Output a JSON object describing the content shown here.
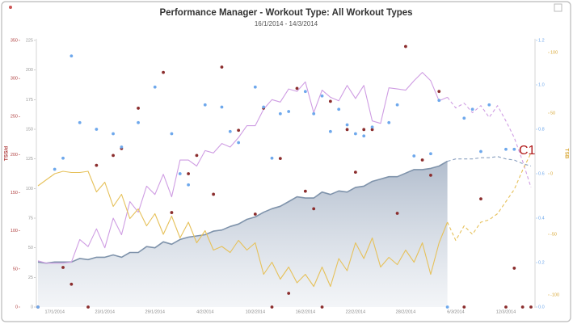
{
  "chart_data": {
    "type": "line",
    "title": "Performance Manager - Workout Type: All Workout Types",
    "subtitle": "16/1/2014 - 14/3/2014",
    "annotation": "C1",
    "categories": [
      null,
      null,
      "17/1/2014",
      null,
      null,
      null,
      null,
      null,
      "23/1/2014",
      null,
      null,
      null,
      null,
      null,
      "29/1/2014",
      null,
      null,
      null,
      null,
      null,
      "4/2/2014",
      null,
      null,
      null,
      null,
      null,
      "10/2/2014",
      null,
      null,
      null,
      null,
      null,
      "16/2/2014",
      null,
      null,
      null,
      null,
      null,
      "22/2/2014",
      null,
      null,
      null,
      null,
      null,
      "28/2/2014",
      null,
      null,
      null,
      null,
      null,
      "6/3/2014",
      null,
      null,
      null,
      null,
      null,
      "12/3/2014",
      null,
      null,
      null
    ],
    "ylim": [
      0,
      225
    ],
    "yticks": [
      0,
      25,
      50,
      75,
      100,
      125,
      150,
      175,
      200,
      225
    ],
    "y2lim": [
      -110,
      110
    ],
    "y2ticks": [
      -100,
      -50,
      0,
      50,
      100
    ],
    "y2label": "TSB",
    "y3lim": [
      0,
      350
    ],
    "y3ticks": [
      0,
      50,
      100,
      150,
      200,
      250,
      300,
      350
    ],
    "y3label": "TSS/d",
    "y4lim": [
      0,
      1.2
    ],
    "y4ticks": [
      {
        "value": 0,
        "label": "0.0"
      },
      0.2,
      0.4,
      0.6,
      0.8,
      {
        "value": 1,
        "label": "1.0"
      },
      1.2
    ],
    "series": [
      {
        "axis": "y",
        "mark": "line",
        "style": "solid",
        "fill": true,
        "color": "#7f93ab",
        "values": [
          38,
          37,
          38,
          38,
          38,
          41,
          40,
          42,
          42,
          44,
          42,
          46,
          46,
          51,
          50,
          55,
          53,
          57,
          59,
          60,
          61,
          64,
          65,
          68,
          70,
          74,
          76,
          80,
          83,
          85,
          89,
          93,
          92,
          92,
          97,
          95,
          98,
          97,
          101,
          102,
          106,
          108,
          110,
          110,
          113,
          116,
          116,
          117,
          119,
          123,
          null,
          null,
          null,
          null,
          null,
          null,
          null,
          null,
          null,
          null
        ]
      },
      {
        "axis": "y",
        "mark": "line",
        "style": "dashed",
        "color": "#8aa0c0",
        "values": [
          null,
          null,
          null,
          null,
          null,
          null,
          null,
          null,
          null,
          null,
          null,
          null,
          null,
          null,
          null,
          null,
          null,
          null,
          null,
          null,
          null,
          null,
          null,
          null,
          null,
          null,
          null,
          null,
          null,
          null,
          null,
          null,
          null,
          null,
          null,
          null,
          null,
          null,
          null,
          null,
          null,
          null,
          null,
          null,
          null,
          null,
          null,
          null,
          null,
          123,
          125,
          125,
          125,
          126,
          126,
          127,
          125,
          124,
          121,
          119
        ]
      },
      {
        "axis": "y",
        "mark": "line",
        "style": "solid",
        "color": "#cf9de3",
        "values": [
          39,
          37,
          37,
          37,
          38,
          57,
          51,
          66,
          50,
          75,
          61,
          89,
          80,
          102,
          95,
          112,
          93,
          124,
          124,
          119,
          132,
          130,
          138,
          135,
          143,
          153,
          153,
          167,
          175,
          173,
          184,
          182,
          190,
          164,
          183,
          177,
          174,
          187,
          176,
          187,
          157,
          155,
          185,
          184,
          183,
          191,
          198,
          191,
          174,
          177,
          null,
          null,
          null,
          null,
          null,
          null,
          null,
          null,
          null,
          null
        ]
      },
      {
        "axis": "y",
        "mark": "line",
        "style": "dashed",
        "color": "#cf9de3",
        "values": [
          null,
          null,
          null,
          null,
          null,
          null,
          null,
          null,
          null,
          null,
          null,
          null,
          null,
          null,
          null,
          null,
          null,
          null,
          null,
          null,
          null,
          null,
          null,
          null,
          null,
          null,
          null,
          null,
          null,
          null,
          null,
          null,
          null,
          null,
          null,
          null,
          null,
          null,
          null,
          null,
          null,
          null,
          null,
          null,
          null,
          null,
          null,
          null,
          null,
          177,
          168,
          172,
          164,
          170,
          160,
          170,
          157,
          143,
          123,
          101
        ]
      },
      {
        "axis": "y2",
        "mark": "line",
        "style": "solid",
        "color": "#e6c15a",
        "values": [
          -10,
          -5,
          0,
          2,
          1,
          1,
          2,
          -15,
          -7,
          -27,
          -17,
          -37,
          -29,
          -43,
          -33,
          -50,
          -35,
          -53,
          -40,
          -57,
          -47,
          -63,
          -60,
          -65,
          -55,
          -63,
          -57,
          -83,
          -73,
          -87,
          -77,
          -90,
          -83,
          -93,
          -77,
          -93,
          -70,
          -80,
          -57,
          -70,
          -53,
          -77,
          -69,
          -75,
          -63,
          -73,
          -57,
          -83,
          -57,
          -40,
          null,
          null,
          null,
          null,
          null,
          null,
          null,
          null,
          null,
          null
        ]
      },
      {
        "axis": "y2",
        "mark": "line",
        "style": "dashed",
        "color": "#e6c15a",
        "values": [
          null,
          null,
          null,
          null,
          null,
          null,
          null,
          null,
          null,
          null,
          null,
          null,
          null,
          null,
          null,
          null,
          null,
          null,
          null,
          null,
          null,
          null,
          null,
          null,
          null,
          null,
          null,
          null,
          null,
          null,
          null,
          null,
          null,
          null,
          null,
          null,
          null,
          null,
          null,
          null,
          null,
          null,
          null,
          null,
          null,
          null,
          null,
          null,
          null,
          -40,
          -55,
          -43,
          -50,
          -40,
          -38,
          -33,
          -23,
          -13,
          3,
          17
        ]
      },
      {
        "axis": "y3",
        "mark": "dot",
        "color": "#8b2d2d",
        "values": [
          0,
          null,
          null,
          52,
          30,
          null,
          0,
          186,
          null,
          199,
          208,
          null,
          261,
          null,
          null,
          308,
          124,
          null,
          175,
          199,
          null,
          148,
          315,
          null,
          232,
          null,
          122,
          261,
          0,
          195,
          18,
          287,
          152,
          129,
          0,
          270,
          null,
          233,
          177,
          233,
          233,
          null,
          null,
          123,
          342,
          null,
          193,
          173,
          283,
          null,
          null,
          0,
          null,
          142,
          null,
          null,
          0,
          51,
          0,
          0
        ]
      },
      {
        "axis": "y4",
        "mark": "dot",
        "color": "#6ea8ec",
        "values": [
          0,
          null,
          0.62,
          0.67,
          1.13,
          0.83,
          null,
          0.8,
          null,
          0.78,
          0.72,
          null,
          0.83,
          null,
          0.99,
          null,
          0.78,
          0.6,
          0.55,
          null,
          0.91,
          null,
          0.9,
          0.79,
          0.74,
          null,
          0.99,
          0.9,
          0.67,
          0.87,
          0.88,
          null,
          0.97,
          0.87,
          0.95,
          0.79,
          0.89,
          0.82,
          0.78,
          0.77,
          0.81,
          null,
          0.83,
          0.91,
          null,
          0.68,
          null,
          0.69,
          0.93,
          0,
          null,
          0.85,
          0.89,
          0.7,
          0.91,
          null,
          0.71,
          0.71,
          null,
          null
        ]
      }
    ]
  }
}
